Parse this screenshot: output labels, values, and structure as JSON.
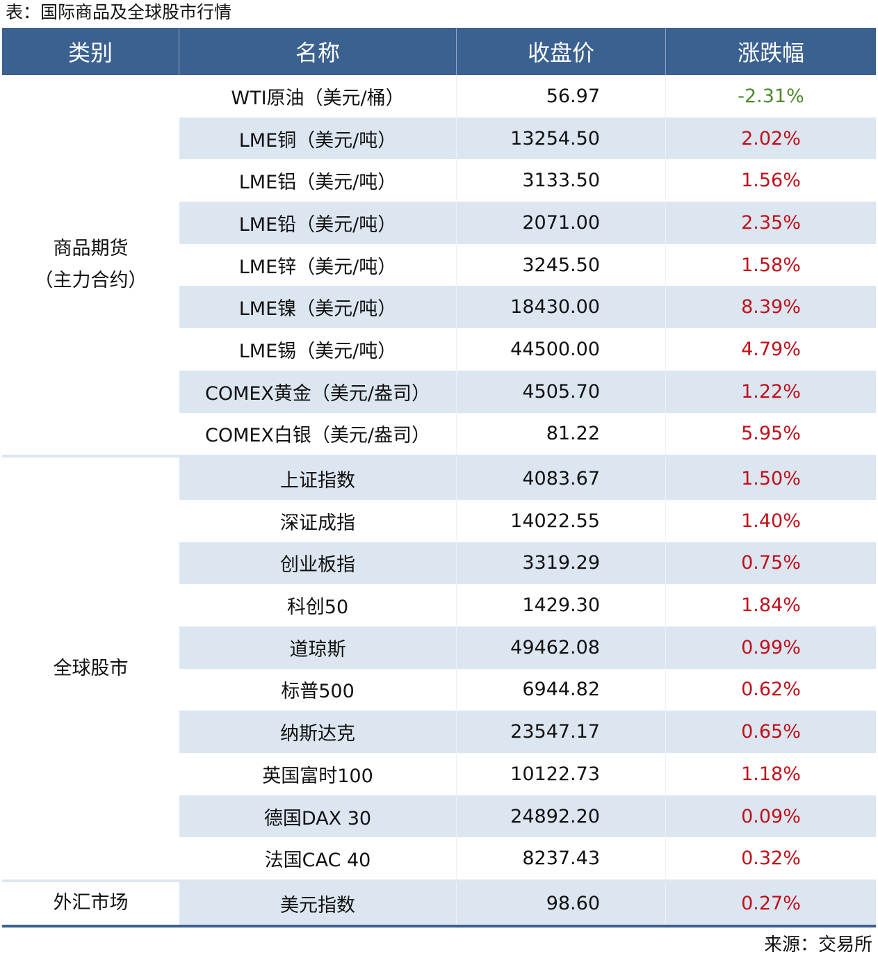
{
  "title": "表：国际商品及全球股市行情",
  "headers": [
    "类别",
    "名称",
    "收盘价",
    "涨跌幅"
  ],
  "colors": {
    "header_bg": "#3b6191",
    "stripe": "#dce6f1",
    "up": "#c0101a",
    "down": "#4e8a2e"
  },
  "groups": [
    {
      "category": "商品期货\n（主力合约）",
      "rows": [
        {
          "name": "WTI原油（美元/桶）",
          "close": "56.97",
          "change": "-2.31%"
        },
        {
          "name": "LME铜（美元/吨）",
          "close": "13254.50",
          "change": "2.02%"
        },
        {
          "name": "LME铝（美元/吨）",
          "close": "3133.50",
          "change": "1.56%"
        },
        {
          "name": "LME铅（美元/吨）",
          "close": "2071.00",
          "change": "2.35%"
        },
        {
          "name": "LME锌（美元/吨）",
          "close": "3245.50",
          "change": "1.58%"
        },
        {
          "name": "LME镍（美元/吨）",
          "close": "18430.00",
          "change": "8.39%"
        },
        {
          "name": "LME锡（美元/吨）",
          "close": "44500.00",
          "change": "4.79%"
        },
        {
          "name": "COMEX黄金（美元/盎司）",
          "close": "4505.70",
          "change": "1.22%"
        },
        {
          "name": "COMEX白银（美元/盎司）",
          "close": "81.22",
          "change": "5.95%"
        }
      ]
    },
    {
      "category": "全球股市",
      "rows": [
        {
          "name": "上证指数",
          "close": "4083.67",
          "change": "1.50%"
        },
        {
          "name": "深证成指",
          "close": "14022.55",
          "change": "1.40%"
        },
        {
          "name": "创业板指",
          "close": "3319.29",
          "change": "0.75%"
        },
        {
          "name": "科创50",
          "close": "1429.30",
          "change": "1.84%"
        },
        {
          "name": "道琼斯",
          "close": "49462.08",
          "change": "0.99%"
        },
        {
          "name": "标普500",
          "close": "6944.82",
          "change": "0.62%"
        },
        {
          "name": "纳斯达克",
          "close": "23547.17",
          "change": "0.65%"
        },
        {
          "name": "英国富时100",
          "close": "10122.73",
          "change": "1.18%"
        },
        {
          "name": "德国DAX 30",
          "close": "24892.20",
          "change": "0.09%"
        },
        {
          "name": "法国CAC 40",
          "close": "8237.43",
          "change": "0.32%"
        }
      ]
    },
    {
      "category": "外汇市场",
      "rows": [
        {
          "name": "美元指数",
          "close": "98.60",
          "change": "0.27%"
        }
      ]
    }
  ],
  "source": "来源：交易所"
}
